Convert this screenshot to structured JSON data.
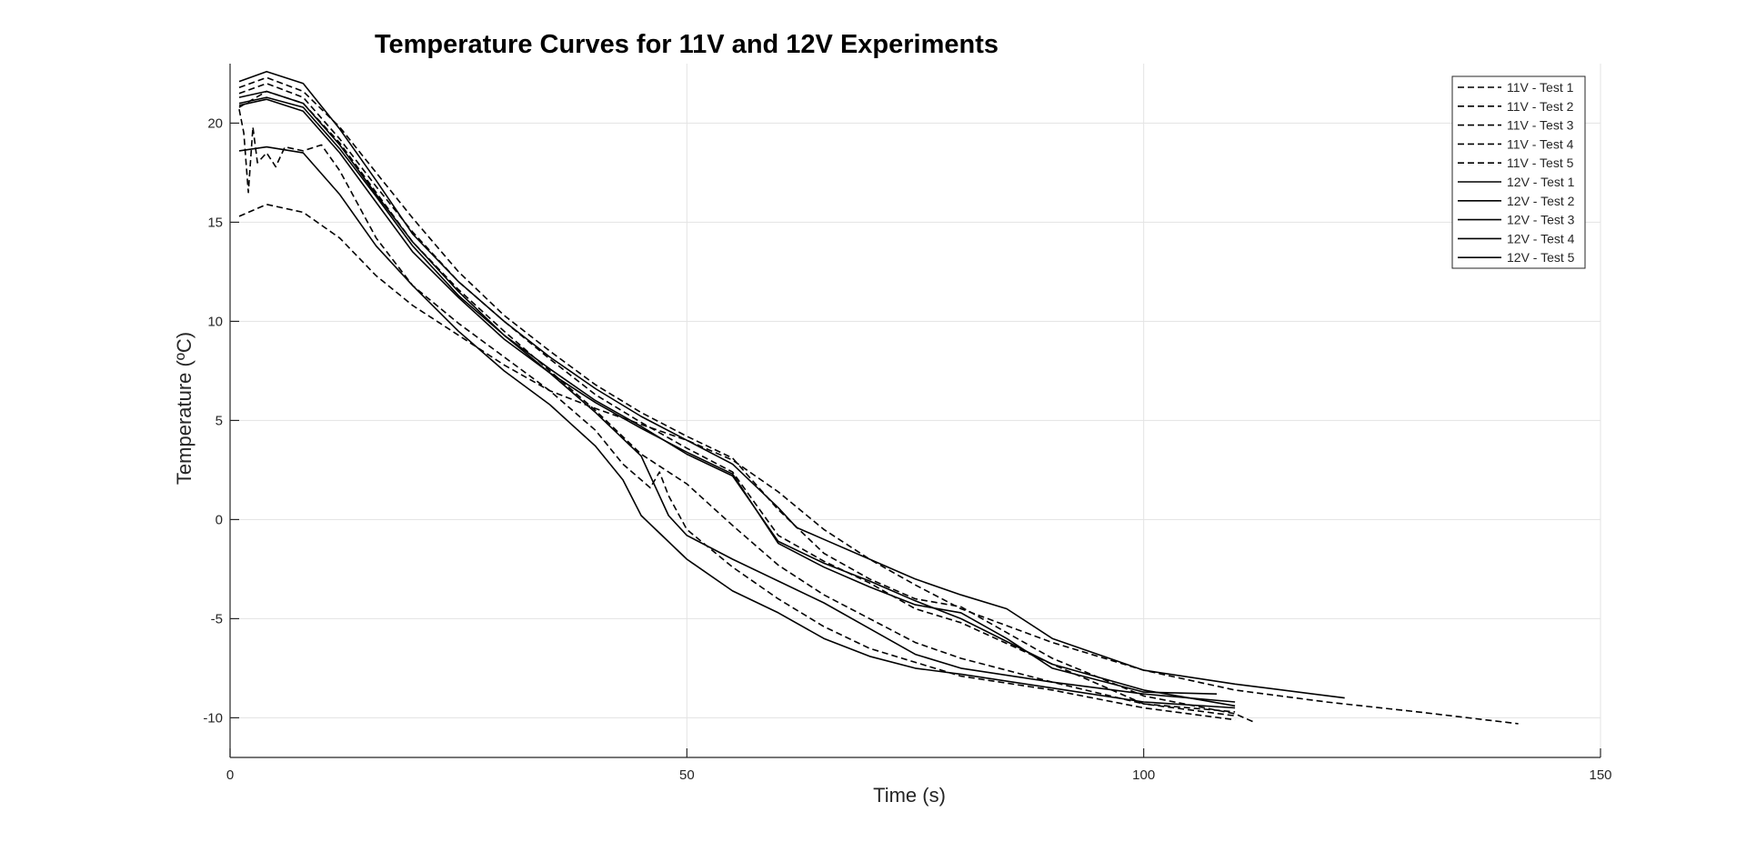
{
  "chart_data": {
    "type": "line",
    "title": "Temperature Curves for 11V and 12V Experiments",
    "xlabel": "Time (s)",
    "ylabel": "Temperature (ºC)",
    "xlim": [
      0,
      150
    ],
    "ylim": [
      -12,
      23
    ],
    "xticks": [
      0,
      50,
      100,
      150
    ],
    "yticks": [
      -10,
      -5,
      0,
      5,
      10,
      15,
      20
    ],
    "grid": true,
    "legend_position": "top-right",
    "colors": {
      "line": "#000000",
      "grid": "#e3e3e3",
      "axis": "#262626"
    },
    "series": [
      {
        "name": "11V - Test 1",
        "style": "dashed",
        "x": [
          1,
          4,
          8,
          12,
          16,
          20,
          25,
          30,
          35,
          40,
          45,
          50,
          55,
          60,
          65,
          70,
          75,
          80,
          90,
          100,
          110,
          120,
          130,
          141
        ],
        "y": [
          15.3,
          15.9,
          15.5,
          14.2,
          12.3,
          10.8,
          9.3,
          7.8,
          6.5,
          5.6,
          4.8,
          4.0,
          3.0,
          1.4,
          -0.5,
          -2.0,
          -3.3,
          -4.5,
          -6.2,
          -7.6,
          -8.6,
          -9.2,
          -9.7,
          -10.3
        ]
      },
      {
        "name": "11V - Test 2",
        "style": "dashed",
        "x": [
          1,
          4,
          8,
          12,
          16,
          20,
          25,
          30,
          35,
          40,
          45,
          50,
          55,
          60,
          65,
          70,
          75,
          80,
          90,
          100,
          110
        ],
        "y": [
          21.5,
          22.0,
          21.3,
          19.2,
          16.8,
          14.5,
          12.0,
          10.0,
          8.1,
          6.3,
          4.9,
          3.6,
          2.4,
          -0.8,
          -2.1,
          -3.2,
          -4.5,
          -5.2,
          -7.3,
          -9.3,
          -9.9
        ]
      },
      {
        "name": "11V - Test 3",
        "style": "dashed",
        "x": [
          1,
          4,
          8,
          12,
          16,
          20,
          25,
          30,
          35,
          40,
          45,
          50,
          55,
          60,
          65,
          70,
          75,
          80,
          90,
          100,
          110,
          112
        ],
        "y": [
          21.8,
          22.3,
          21.6,
          19.8,
          17.5,
          15.2,
          12.5,
          10.3,
          8.5,
          6.8,
          5.4,
          4.2,
          3.1,
          0.5,
          -1.7,
          -3.0,
          -4.0,
          -4.4,
          -7.0,
          -8.9,
          -9.8,
          -10.2
        ]
      },
      {
        "name": "11V - Test 4",
        "style": "dashed",
        "x": [
          1,
          4,
          8,
          12,
          16,
          20,
          25,
          30,
          35,
          40,
          45,
          50,
          55,
          60,
          65,
          70,
          75,
          80,
          90,
          100,
          110
        ],
        "y": [
          20.8,
          21.6,
          21.0,
          19.0,
          16.5,
          14.0,
          11.6,
          9.5,
          7.5,
          5.5,
          3.3,
          1.8,
          -0.3,
          -2.3,
          -3.8,
          -5.0,
          -6.2,
          -7.0,
          -8.2,
          -9.3,
          -9.7
        ]
      },
      {
        "name": "11V - Test 5",
        "style": "dashed",
        "x": [
          1,
          1.5,
          2,
          2.5,
          3,
          4,
          5,
          6,
          8,
          10,
          12,
          16,
          20,
          25,
          30,
          35,
          40,
          43,
          46,
          47,
          48,
          50,
          55,
          60,
          65,
          70,
          75,
          80,
          90,
          100,
          110
        ],
        "y": [
          20.7,
          19.5,
          16.5,
          19.8,
          18.0,
          18.5,
          17.8,
          18.8,
          18.6,
          18.9,
          17.6,
          14.2,
          11.8,
          9.9,
          8.2,
          6.5,
          4.5,
          2.8,
          1.6,
          2.4,
          1.2,
          -0.5,
          -2.4,
          -4.0,
          -5.4,
          -6.5,
          -7.2,
          -7.9,
          -8.6,
          -9.5,
          -10.1
        ]
      },
      {
        "name": "12V - Test 1",
        "style": "solid",
        "x": [
          1,
          4,
          8,
          12,
          16,
          20,
          25,
          30,
          35,
          40,
          43,
          45,
          50,
          55,
          60,
          65,
          70,
          75,
          80,
          90,
          100,
          110
        ],
        "y": [
          18.6,
          18.8,
          18.5,
          16.4,
          13.8,
          11.8,
          9.5,
          7.5,
          5.8,
          3.7,
          2.0,
          0.2,
          -2.0,
          -3.6,
          -4.7,
          -6.0,
          -6.9,
          -7.5,
          -7.8,
          -8.5,
          -9.2,
          -9.5
        ]
      },
      {
        "name": "12V - Test 2",
        "style": "solid",
        "x": [
          1,
          4,
          8,
          12,
          16,
          20,
          25,
          30,
          35,
          40,
          45,
          50,
          55,
          60,
          65,
          70,
          75,
          80,
          90,
          100,
          110
        ],
        "y": [
          21.0,
          21.3,
          20.8,
          18.7,
          16.3,
          13.8,
          11.3,
          9.3,
          7.6,
          6.0,
          4.7,
          3.3,
          2.2,
          -1.1,
          -2.2,
          -3.1,
          -4.1,
          -5.0,
          -7.3,
          -8.6,
          -9.4
        ]
      },
      {
        "name": "12V - Test 3",
        "style": "solid",
        "x": [
          1,
          4,
          8,
          12,
          16,
          20,
          25,
          30,
          35,
          40,
          45,
          48,
          50,
          55,
          60,
          65,
          70,
          75,
          80,
          90,
          100,
          110
        ],
        "y": [
          21.3,
          21.6,
          21.0,
          18.9,
          16.4,
          14.0,
          11.5,
          9.3,
          7.4,
          5.4,
          3.2,
          0.2,
          -0.8,
          -2.0,
          -3.1,
          -4.2,
          -5.5,
          -6.8,
          -7.5,
          -8.2,
          -8.8,
          -9.2
        ]
      },
      {
        "name": "12V - Test 4",
        "style": "solid",
        "x": [
          1,
          4,
          8,
          12,
          16,
          20,
          25,
          30,
          35,
          40,
          45,
          50,
          55,
          60,
          62,
          65,
          70,
          75,
          80,
          85,
          90,
          100,
          110,
          122
        ],
        "y": [
          22.1,
          22.6,
          22.0,
          19.7,
          17.1,
          14.4,
          12.0,
          10.0,
          8.2,
          6.6,
          5.2,
          4.0,
          2.8,
          0.6,
          -0.4,
          -1.0,
          -2.0,
          -3.0,
          -3.8,
          -4.5,
          -6.0,
          -7.6,
          -8.3,
          -9.0
        ]
      },
      {
        "name": "12V - Test 5",
        "style": "solid",
        "x": [
          1,
          4,
          8,
          12,
          16,
          20,
          25,
          30,
          35,
          40,
          45,
          50,
          55,
          60,
          65,
          70,
          75,
          80,
          85,
          90,
          100,
          108
        ],
        "y": [
          20.9,
          21.2,
          20.6,
          18.5,
          16.0,
          13.5,
          11.2,
          9.1,
          7.4,
          5.9,
          4.6,
          3.4,
          2.3,
          -1.2,
          -2.4,
          -3.4,
          -4.3,
          -4.7,
          -6.0,
          -7.5,
          -8.7,
          -8.8
        ]
      }
    ]
  }
}
